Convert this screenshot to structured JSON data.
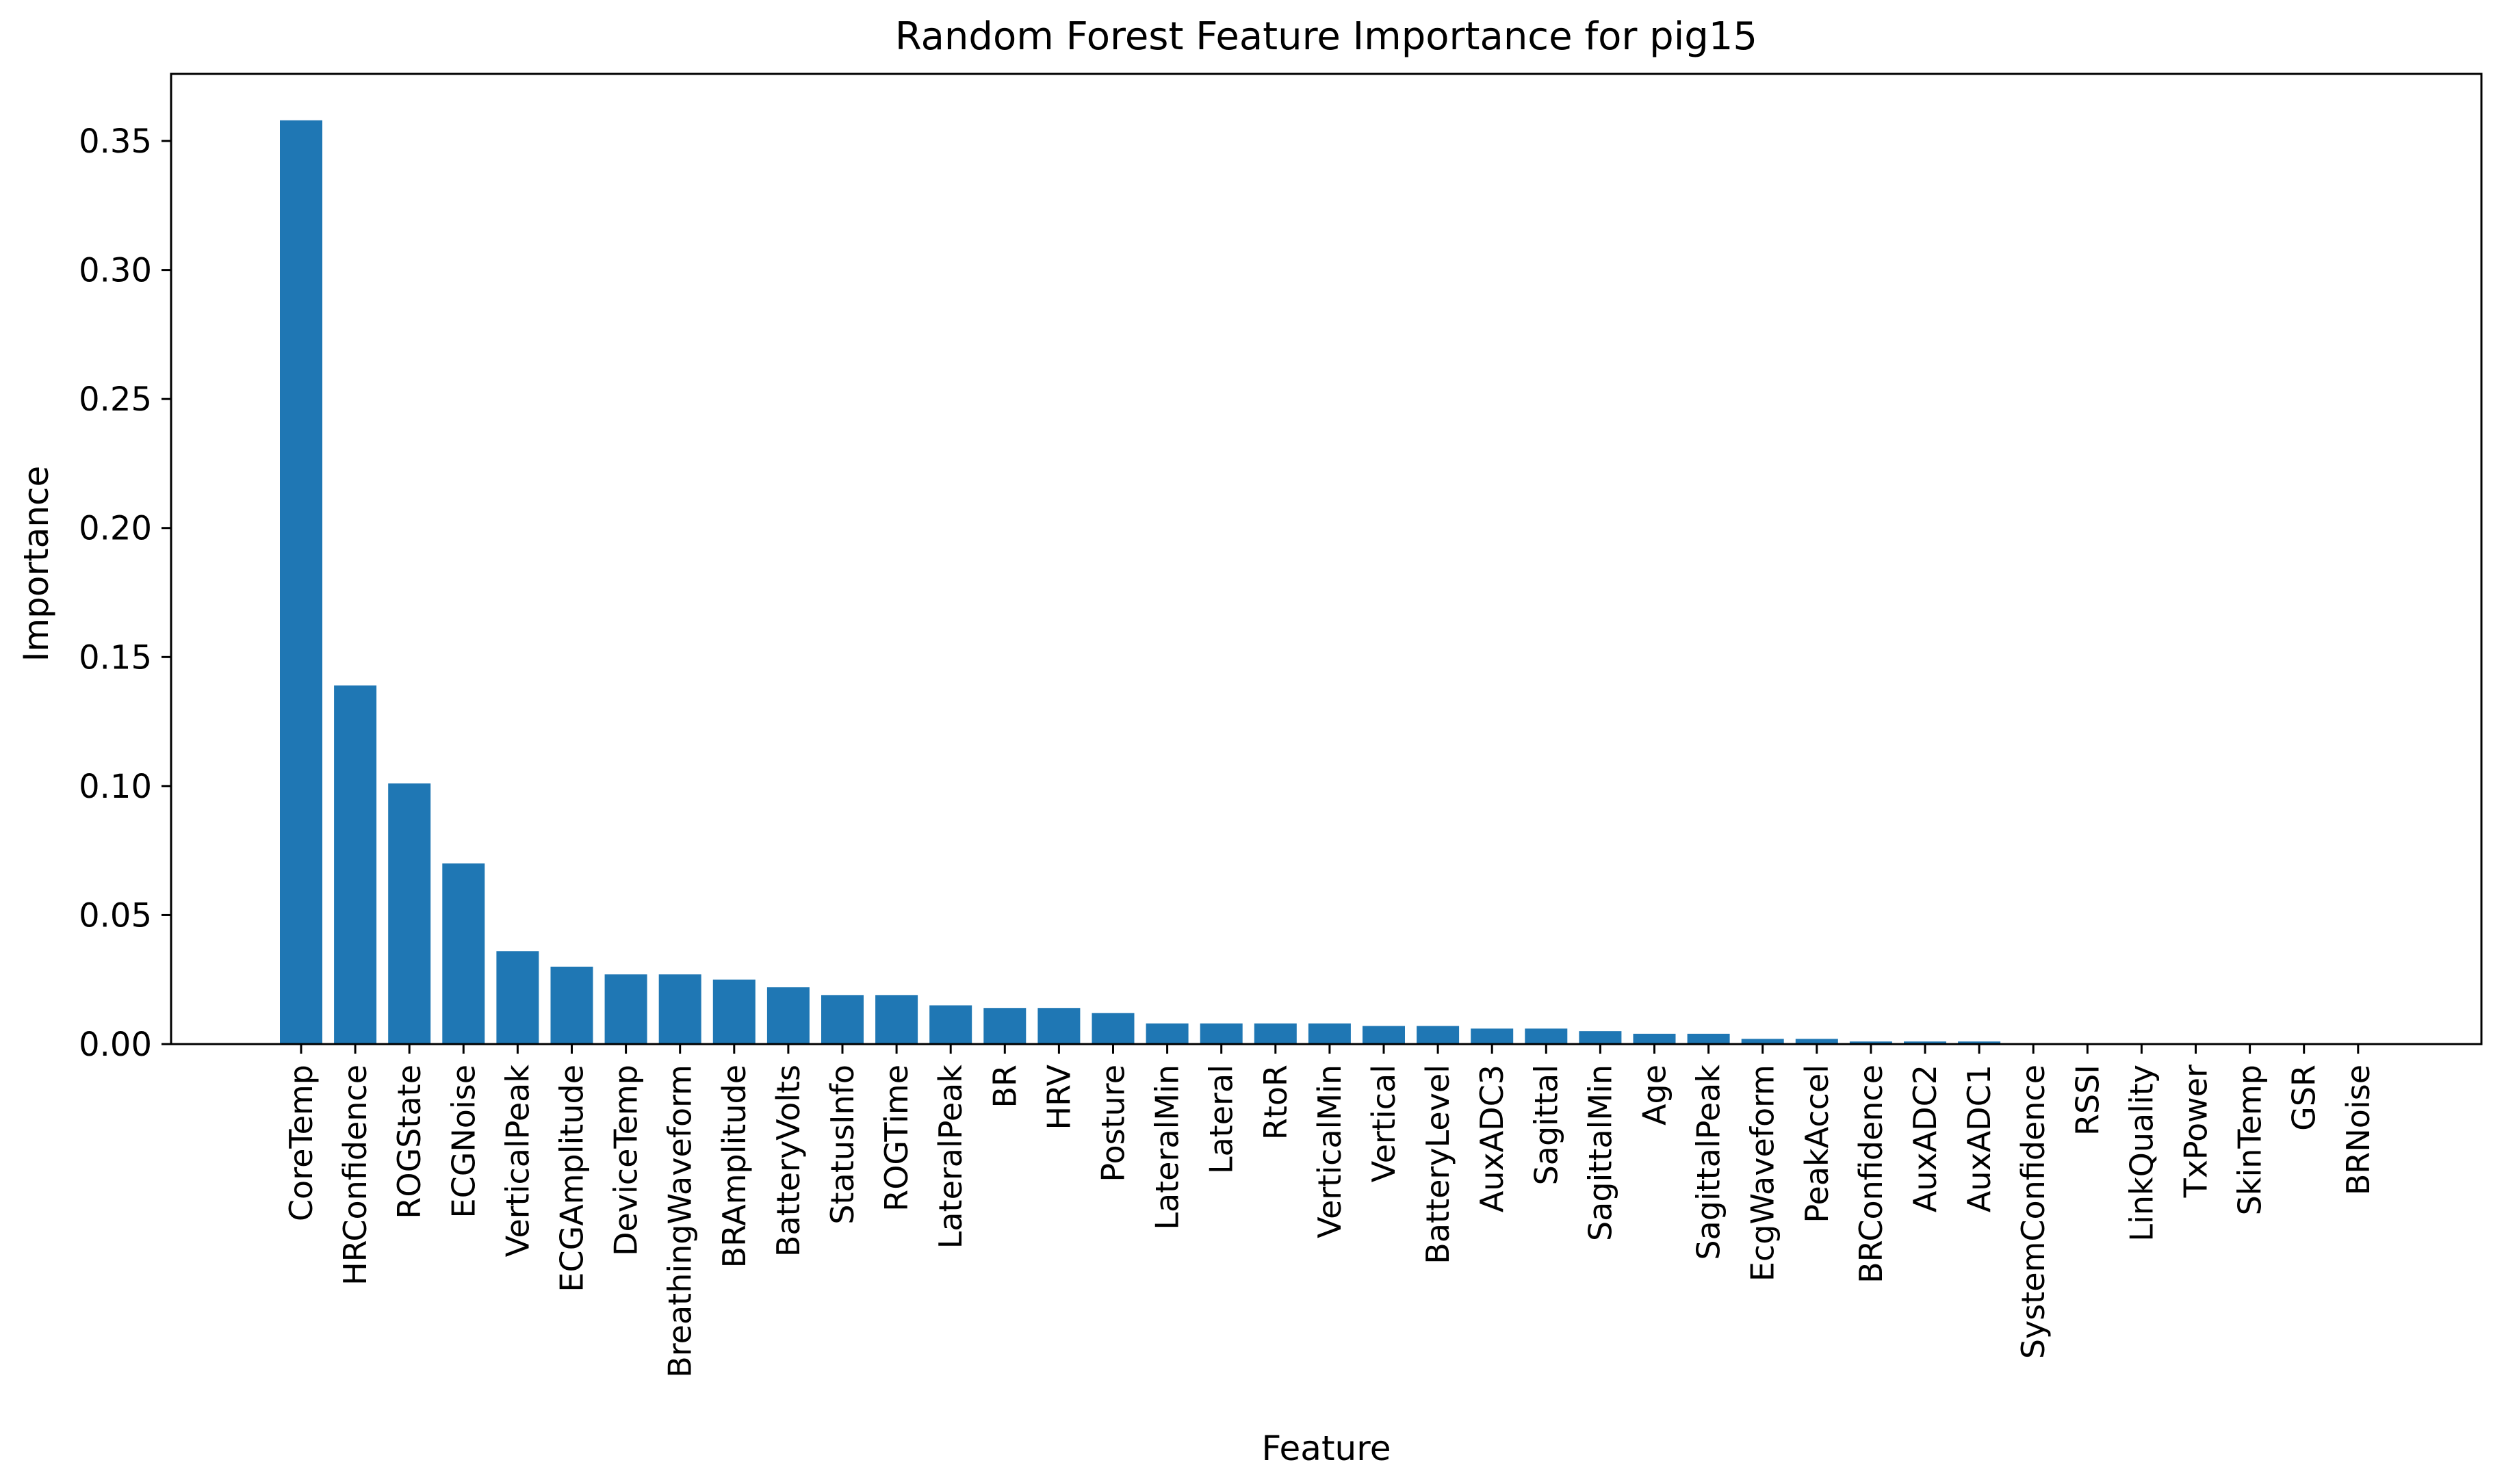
{
  "chart_data": {
    "type": "bar",
    "title": "Random Forest Feature Importance for pig15",
    "xlabel": "Feature",
    "ylabel": "Importance",
    "ylim": [
      0,
      0.376
    ],
    "yticks": [
      0.0,
      0.05,
      0.1,
      0.15,
      0.2,
      0.25,
      0.3,
      0.35
    ],
    "ytick_labels": [
      "0.00",
      "0.05",
      "0.10",
      "0.15",
      "0.20",
      "0.25",
      "0.30",
      "0.35"
    ],
    "bar_color": "#1f77b4",
    "grid": false,
    "categories": [
      "CoreTemp",
      "HRConfidence",
      "ROGState",
      "ECGNoise",
      "VerticalPeak",
      "ECGAmplitude",
      "DeviceTemp",
      "BreathingWaveform",
      "BRAmplitude",
      "BatteryVolts",
      "StatusInfo",
      "ROGTime",
      "LateralPeak",
      "BR",
      "HRV",
      "Posture",
      "LateralMin",
      "Lateral",
      "RtoR",
      "VerticalMin",
      "Vertical",
      "BatteryLevel",
      "AuxADC3",
      "Sagittal",
      "SagittalMin",
      "Age",
      "SagittalPeak",
      "EcgWaveform",
      "PeakAccel",
      "BRConfidence",
      "AuxADC2",
      "AuxADC1",
      "SystemConfidence",
      "RSSI",
      "LinkQuality",
      "TxPower",
      "SkinTemp",
      "GSR",
      "BRNoise"
    ],
    "values": [
      0.358,
      0.139,
      0.101,
      0.07,
      0.036,
      0.03,
      0.027,
      0.027,
      0.025,
      0.022,
      0.019,
      0.019,
      0.015,
      0.014,
      0.014,
      0.012,
      0.008,
      0.008,
      0.008,
      0.008,
      0.007,
      0.007,
      0.006,
      0.006,
      0.005,
      0.004,
      0.004,
      0.002,
      0.002,
      0.001,
      0.001,
      0.001,
      0.0,
      0.0,
      0.0,
      0.0,
      0.0,
      0.0,
      0.0
    ]
  }
}
